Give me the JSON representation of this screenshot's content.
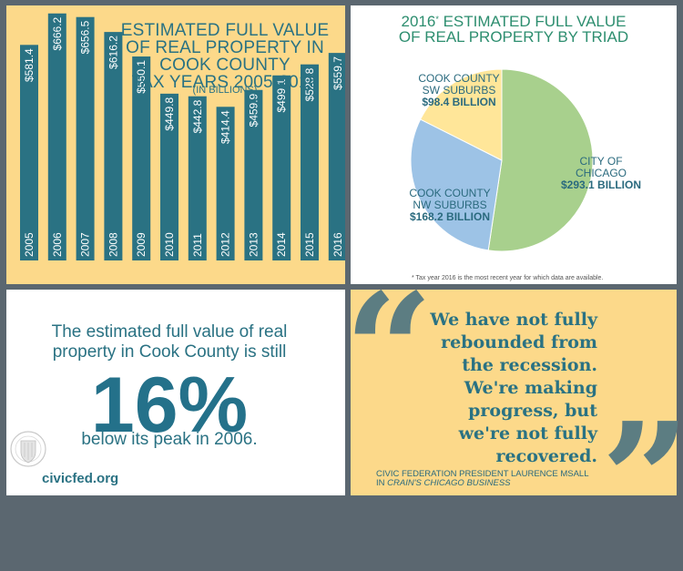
{
  "chart_data": [
    {
      "type": "bar",
      "title": [
        "ESTIMATED FULL VALUE",
        "OF REAL PROPERTY IN",
        "COOK COUNTY",
        "TAX YEARS 2005-2016"
      ],
      "subtitle": "(IN BILLIONS)",
      "categories": [
        "2005",
        "2006",
        "2007",
        "2008",
        "2009",
        "2010",
        "2011",
        "2012",
        "2013",
        "2014",
        "2015",
        "2016"
      ],
      "values": [
        581.4,
        666.2,
        656.5,
        616.2,
        550.1,
        449.8,
        442.8,
        414.4,
        459.9,
        499.1,
        528.8,
        559.7
      ],
      "value_labels": [
        "$581.4",
        "$666.2",
        "$656.5",
        "$616.2",
        "$550.1",
        "$449.8",
        "$442.8",
        "$414.4",
        "$459.9",
        "$499.1",
        "$528.8",
        "$559.7"
      ],
      "ylim": [
        0,
        700
      ],
      "color": "#2a7283",
      "label_color": "#ffffff"
    },
    {
      "type": "pie",
      "title": "2016",
      "title_marker": "*",
      "title_rest": " ESTIMATED FULL VALUE",
      "title_line2": "OF REAL PROPERTY BY TRIAD",
      "slices": [
        {
          "label": [
            "CITY OF",
            "CHICAGO"
          ],
          "value_label": "$293.1 BILLION",
          "value": 293.1,
          "color": "#a8d08d"
        },
        {
          "label": [
            "COOK COUNTY",
            "NW SUBURBS"
          ],
          "value_label": "$168.2 BILLION",
          "value": 168.2,
          "color": "#9dc3e6"
        },
        {
          "label": [
            "COOK COUNTY",
            "SW SUBURBS"
          ],
          "value_label": "$98.4 BILLION",
          "value": 98.4,
          "color": "#ffe699"
        }
      ],
      "footnote": "* Tax year 2016 is the most recent year for which data are available."
    }
  ],
  "stat": {
    "lines_top": [
      "The estimated full value of real",
      "property in Cook County is still"
    ],
    "big": "16%",
    "line_bottom": "below its peak in 2006."
  },
  "logo": {
    "url": "civicfed.org"
  },
  "quote": {
    "lines": [
      "We have not fully",
      "rebounded from",
      "the recession.",
      "We're making",
      "progress, but",
      "we're not fully",
      "recovered."
    ],
    "attribution_line1": "CIVIC FEDERATION PRESIDENT LAURENCE MSALL",
    "attribution_prefix": "IN ",
    "attribution_source": "CRAIN'S CHICAGO BUSINESS"
  },
  "colors": {
    "frame": "#5b6770",
    "panel_yellow": "#fcd98a",
    "teal": "#2a7283",
    "quote_mark": "#5c7d82"
  }
}
